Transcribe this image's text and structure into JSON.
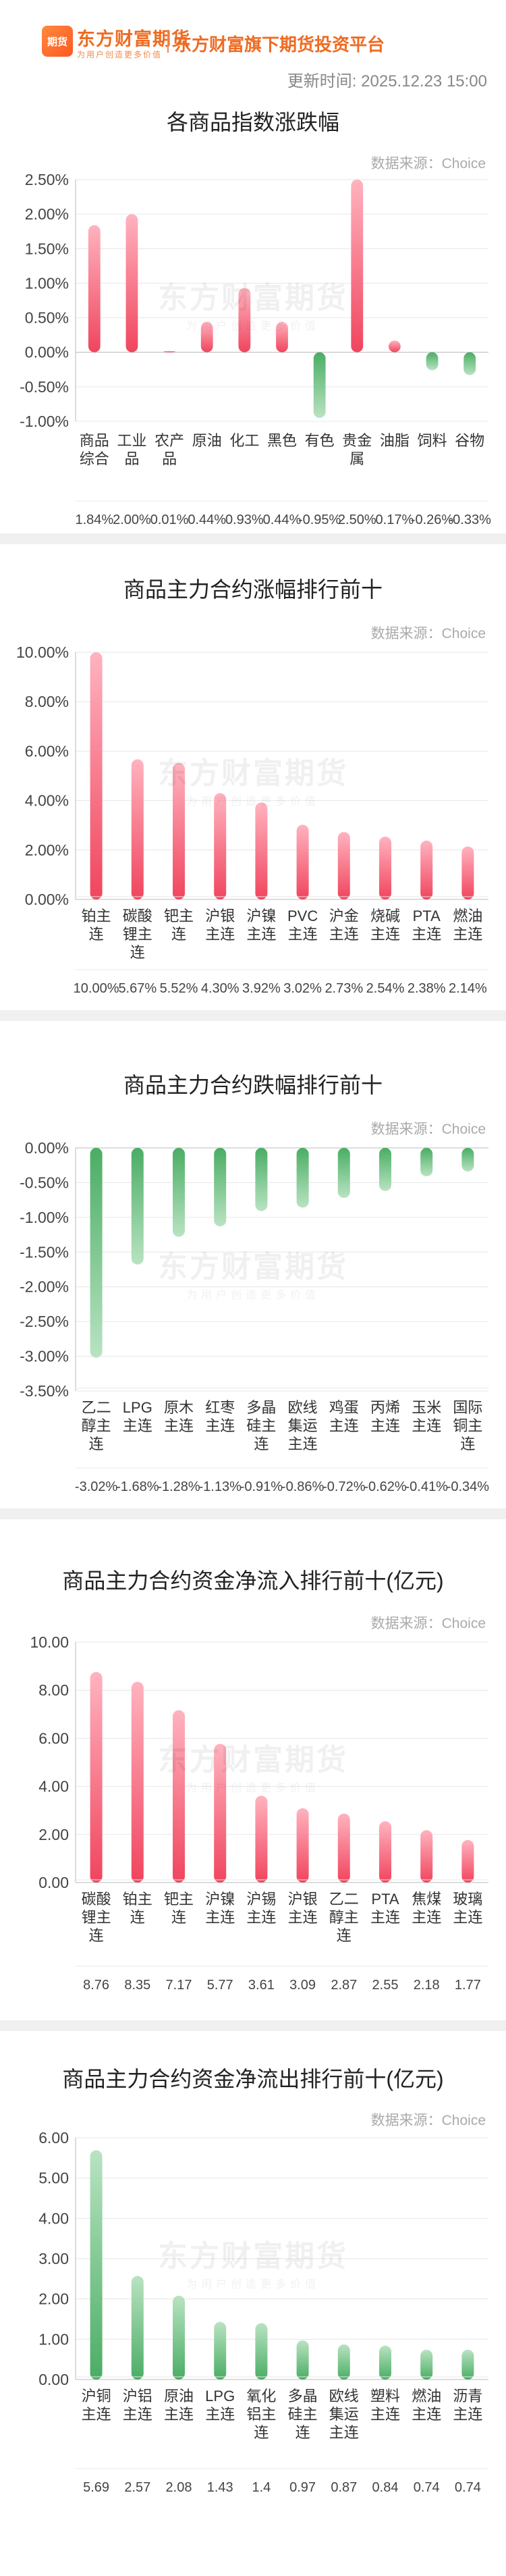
{
  "header": {
    "brand": "东方财富期货",
    "brand_sub": "为用户创造更多价值",
    "logo_text": "期货",
    "platform": "东方财富旗下期货投资平台",
    "updated_label": "更新时间:",
    "updated_value": "2025.12.23 15:00"
  },
  "colors": {
    "positive": "#f0455e",
    "negative": "#4aad64",
    "accent": "#ef6b22"
  },
  "source_label": "数据来源：Choice",
  "watermark": {
    "main": "东方财富期货",
    "sub": "为用户创造更多价值"
  },
  "chart_data": [
    {
      "type": "bar",
      "title": "各商品指数涨跌幅",
      "categories": [
        "商品\n综合",
        "工业\n品",
        "农产\n品",
        "原油",
        "化工",
        "黑色",
        "有色",
        "贵金\n属",
        "油脂",
        "饲料",
        "谷物"
      ],
      "values": [
        1.84,
        2.0,
        0.01,
        0.44,
        0.93,
        0.44,
        -0.95,
        2.5,
        0.17,
        -0.26,
        -0.33
      ],
      "value_labels": [
        "1.84%",
        "2.00%",
        "0.01%",
        "0.44%",
        "0.93%",
        "0.44%",
        "-0.95%",
        "2.50%",
        "0.17%",
        "-0.26%",
        "-0.33%"
      ],
      "yticks": [
        2.5,
        2.0,
        1.5,
        1.0,
        0.5,
        0.0,
        -0.5,
        -1.0
      ],
      "ytick_labels": [
        "2.50%",
        "2.00%",
        "1.50%",
        "1.00%",
        "0.50%",
        "0.00%",
        "-0.50%",
        "-1.00%"
      ],
      "ylim": [
        -1.0,
        2.5
      ]
    },
    {
      "type": "bar",
      "title": "商品主力合约涨幅排行前十",
      "categories": [
        "铂主\n连",
        "碳酸\n锂主\n连",
        "钯主\n连",
        "沪银\n主连",
        "沪镍\n主连",
        "PVC\n主连",
        "沪金\n主连",
        "烧碱\n主连",
        "PTA\n主连",
        "燃油\n主连"
      ],
      "values": [
        10.0,
        5.67,
        5.52,
        4.3,
        3.92,
        3.02,
        2.73,
        2.54,
        2.38,
        2.14
      ],
      "value_labels": [
        "10.00%",
        "5.67%",
        "5.52%",
        "4.30%",
        "3.92%",
        "3.02%",
        "2.73%",
        "2.54%",
        "2.38%",
        "2.14%"
      ],
      "yticks": [
        10,
        8,
        6,
        4,
        2,
        0
      ],
      "ytick_labels": [
        "10.00%",
        "8.00%",
        "6.00%",
        "4.00%",
        "2.00%",
        "0.00%"
      ],
      "ylim": [
        0,
        10
      ]
    },
    {
      "type": "bar",
      "title": "商品主力合约跌幅排行前十",
      "categories": [
        "乙二\n醇主\n连",
        "LPG\n主连",
        "原木\n主连",
        "红枣\n主连",
        "多晶\n硅主\n连",
        "欧线\n集运\n主连",
        "鸡蛋\n主连",
        "丙烯\n主连",
        "玉米\n主连",
        "国际\n铜主\n连"
      ],
      "values": [
        -3.02,
        -1.68,
        -1.28,
        -1.13,
        -0.91,
        -0.86,
        -0.72,
        -0.62,
        -0.41,
        -0.34
      ],
      "value_labels": [
        "-3.02%",
        "-1.68%",
        "-1.28%",
        "-1.13%",
        "-0.91%",
        "-0.86%",
        "-0.72%",
        "-0.62%",
        "-0.41%",
        "-0.34%"
      ],
      "yticks": [
        0,
        -0.5,
        -1.0,
        -1.5,
        -2.0,
        -2.5,
        -3.0,
        -3.5
      ],
      "ytick_labels": [
        "0.00%",
        "-0.50%",
        "-1.00%",
        "-1.50%",
        "-2.00%",
        "-2.50%",
        "-3.00%",
        "-3.50%"
      ],
      "ylim": [
        -3.5,
        0
      ]
    },
    {
      "type": "bar",
      "title": "商品主力合约资金净流入排行前十(亿元)",
      "categories": [
        "碳酸\n锂主\n连",
        "铂主\n连",
        "钯主\n连",
        "沪镍\n主连",
        "沪锡\n主连",
        "沪银\n主连",
        "乙二\n醇主\n连",
        "PTA\n主连",
        "焦煤\n主连",
        "玻璃\n主连"
      ],
      "values": [
        8.76,
        8.35,
        7.17,
        5.77,
        3.61,
        3.09,
        2.87,
        2.55,
        2.18,
        1.77
      ],
      "value_labels": [
        "8.76",
        "8.35",
        "7.17",
        "5.77",
        "3.61",
        "3.09",
        "2.87",
        "2.55",
        "2.18",
        "1.77"
      ],
      "yticks": [
        10,
        8,
        6,
        4,
        2,
        0
      ],
      "ytick_labels": [
        "10.00",
        "8.00",
        "6.00",
        "4.00",
        "2.00",
        "0.00"
      ],
      "ylim": [
        0,
        10
      ]
    },
    {
      "type": "bar",
      "title": "商品主力合约资金净流出排行前十(亿元)",
      "categories": [
        "沪铜\n主连",
        "沪铝\n主连",
        "原油\n主连",
        "LPG\n主连",
        "氧化\n铝主\n连",
        "多晶\n硅主\n连",
        "欧线\n集运\n主连",
        "塑料\n主连",
        "燃油\n主连",
        "沥青\n主连"
      ],
      "values": [
        5.69,
        2.57,
        2.08,
        1.43,
        1.4,
        0.97,
        0.87,
        0.84,
        0.74,
        0.74
      ],
      "value_labels": [
        "5.69",
        "2.57",
        "2.08",
        "1.43",
        "1.4",
        "0.97",
        "0.87",
        "0.84",
        "0.74",
        "0.74"
      ],
      "yticks": [
        6,
        5,
        4,
        3,
        2,
        1,
        0
      ],
      "ytick_labels": [
        "6.00",
        "5.00",
        "4.00",
        "3.00",
        "2.00",
        "1.00",
        "0.00"
      ],
      "ylim": [
        0,
        6
      ],
      "negative": true
    }
  ]
}
